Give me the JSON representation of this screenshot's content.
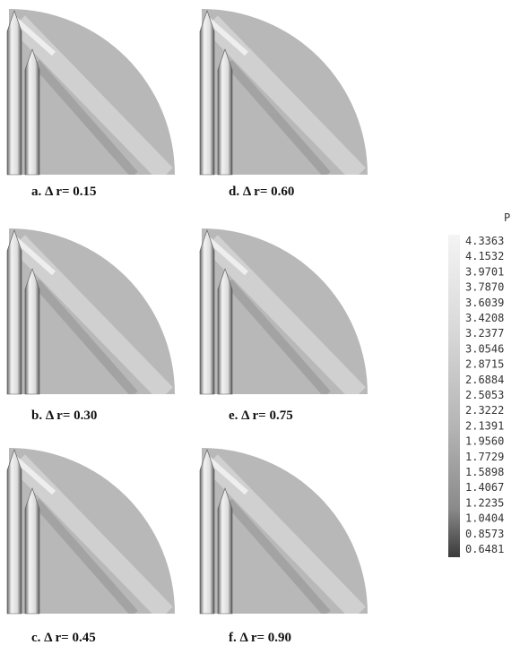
{
  "panels": [
    {
      "label": "a. Δ r= 0.15"
    },
    {
      "label": "b. Δ r= 0.30"
    },
    {
      "label": "c. Δ r= 0.45"
    },
    {
      "label": "d. Δ r= 0.60"
    },
    {
      "label": "e. Δ r= 0.75"
    },
    {
      "label": "f. Δ r= 0.90"
    }
  ],
  "legend": {
    "title": "P",
    "values": [
      "4.3363",
      "4.1532",
      "3.9701",
      "3.7870",
      "3.6039",
      "3.4208",
      "3.2377",
      "3.0546",
      "2.8715",
      "2.6884",
      "2.5053",
      "2.3222",
      "2.1391",
      "1.9560",
      "1.7729",
      "1.5898",
      "1.4067",
      "1.2235",
      "1.0404",
      "0.8573",
      "0.6481"
    ]
  }
}
